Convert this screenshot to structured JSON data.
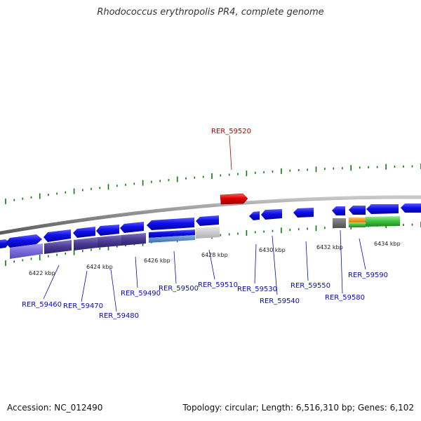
{
  "title": "Rhodococcus erythropolis PR4, complete genome",
  "footer": {
    "accession": "Accession: NC_012490",
    "summary": "Topology: circular; Length: 6,516,310 bp; Genes: 6,102"
  },
  "colors": {
    "gene_blue": "#1010e8",
    "gene_highlight": "#e00000",
    "label_blue": "#0a0ab4",
    "label_red": "#c00000",
    "tick_green": "#0a7a0a",
    "backbone": "#8a8a8a"
  },
  "scale_labels": [
    "6422 kbp",
    "6424 kbp",
    "6426 kbp",
    "6428 kbp",
    "6430 kbp",
    "6432 kbp",
    "6434 kbp"
  ],
  "genes": [
    {
      "name": "RER_59460"
    },
    {
      "name": "RER_59470"
    },
    {
      "name": "RER_59480"
    },
    {
      "name": "RER_59490"
    },
    {
      "name": "RER_59500"
    },
    {
      "name": "RER_59510"
    },
    {
      "name": "RER_59520"
    },
    {
      "name": "RER_59530"
    },
    {
      "name": "RER_59540"
    },
    {
      "name": "RER_59550"
    },
    {
      "name": "RER_59580"
    },
    {
      "name": "RER_59590"
    }
  ]
}
